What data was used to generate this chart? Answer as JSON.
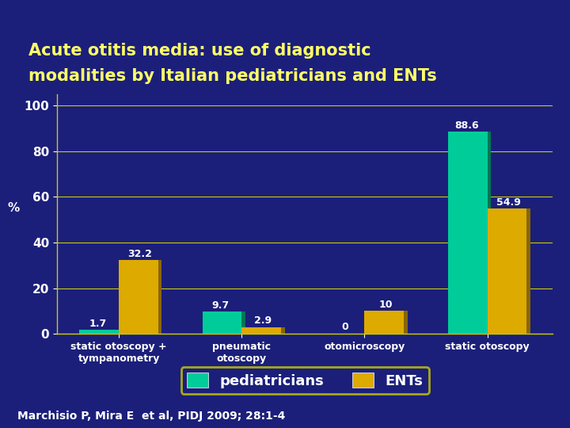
{
  "title_line1": "Acute otitis media: use of diagnostic",
  "title_line2": "modalities by Italian pediatricians and ENTs",
  "categories": [
    "static otoscopy +\ntympanometry",
    "pneumatic\notoscopy",
    "otomicroscopy",
    "static otoscopy"
  ],
  "pediatricians": [
    1.7,
    9.7,
    0,
    88.6
  ],
  "ents": [
    32.2,
    2.9,
    10,
    54.9
  ],
  "pediatricians_color": "#00CC99",
  "pediatricians_dark": "#007755",
  "ents_color": "#DDAA00",
  "ents_dark": "#886600",
  "background_color": "#1B1F7A",
  "plot_bg_color": "#1B1F7A",
  "title_color": "#FFFF66",
  "tick_color": "#FFFFFF",
  "bar_label_color": "#FFFFFF",
  "grid_color": "#CCCC00",
  "ylabel": "%",
  "ylim": [
    0,
    105
  ],
  "yticks": [
    0,
    20,
    40,
    60,
    80,
    100
  ],
  "footnote": "Marchisio P, Mira E  et al, PIDJ 2009; 28:1-4",
  "footnote_color": "#FFFFFF",
  "legend_pediatricians": "pediatricians",
  "legend_ents": "ENTs",
  "bar_width": 0.32,
  "title_fontsize": 15,
  "tick_fontsize": 11,
  "label_fontsize": 9,
  "bar_label_fontsize": 9,
  "footnote_fontsize": 10,
  "legend_fontsize": 13
}
